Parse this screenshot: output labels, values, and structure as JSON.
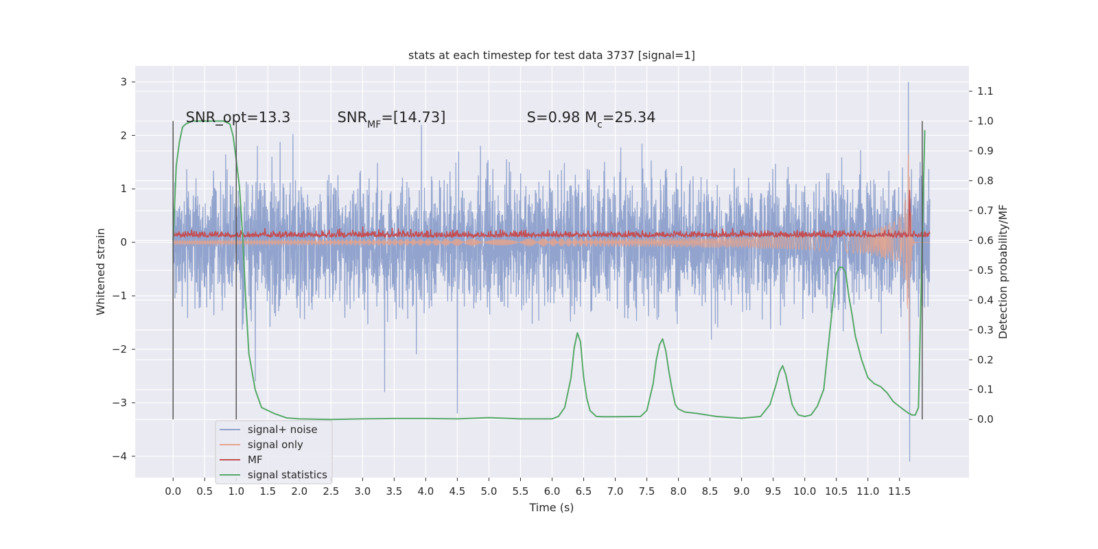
{
  "chart_data": {
    "type": "line",
    "title": "stats at each timestep for test data 3737 [signal=1]",
    "xlabel": "Time (s)",
    "ylabel": "Whitened strain",
    "y2label": "Detection probability/MF",
    "xlim": [
      -0.6,
      12.6
    ],
    "ylim": [
      -4.4,
      3.3
    ],
    "y2lim": [
      -0.195,
      1.185
    ],
    "x_ticks": [
      0.0,
      0.5,
      1.0,
      1.5,
      2.0,
      2.5,
      3.0,
      3.5,
      4.0,
      4.5,
      5.0,
      5.5,
      6.0,
      6.5,
      7.0,
      7.5,
      8.0,
      8.5,
      9.0,
      9.5,
      10.0,
      10.5,
      11.0,
      11.5
    ],
    "x_tick_labels": [
      "0.0",
      "0.5",
      "1.0",
      "1.5",
      "2.0",
      "2.5",
      "3.0",
      "3.5",
      "4.0",
      "4.5",
      "5.0",
      "5.5",
      "6.0",
      "6.5",
      "7.0",
      "7.5",
      "8.0",
      "8.5",
      "9.0",
      "9.5",
      "10.0",
      "10.5",
      "11.0",
      "11.5"
    ],
    "y_ticks": [
      3,
      2,
      1,
      0,
      -1,
      -2,
      -3,
      -4
    ],
    "y_tick_labels": [
      "3",
      "2",
      "1",
      "0",
      "−1",
      "−2",
      "−3",
      "−4"
    ],
    "y2_ticks": [
      1.1,
      1.0,
      0.9,
      0.8,
      0.7,
      0.6,
      0.5,
      0.4,
      0.3,
      0.2,
      0.1,
      0.0
    ],
    "y2_tick_labels": [
      "1.1",
      "1.0",
      "0.9",
      "0.8",
      "0.7",
      "0.6",
      "0.5",
      "0.4",
      "0.3",
      "0.2",
      "0.1",
      "0.0"
    ],
    "grid": true,
    "legend_position": "lower-left",
    "annotations": [
      {
        "text": "SNR_opt=13.3",
        "x": 0.2,
        "y": 2.25
      },
      {
        "text": "SNR_MF=[14.73]",
        "x": 2.6,
        "y": 2.25
      },
      {
        "text": "S=0.98   M_c=25.34",
        "x": 5.6,
        "y": 2.25
      }
    ],
    "vertical_lines": [
      {
        "x": 0.0,
        "y2_from": 0.0,
        "y2_to": 1.0
      },
      {
        "x": 1.0,
        "y2_from": 0.0,
        "y2_to": 1.0
      },
      {
        "x": 11.86,
        "y2_from": 0.0,
        "y2_to": 1.0
      }
    ],
    "series": [
      {
        "name": "signal+ noise",
        "axis": "left",
        "color": "#8da0cb",
        "x_range": [
          0.0,
          11.98
        ],
        "amplitude_std": 0.6,
        "extremes": [
          {
            "x": 11.64,
            "y": 3.0
          },
          {
            "x": 11.66,
            "y": -4.1
          },
          {
            "x": 4.5,
            "y": -3.2
          },
          {
            "x": 3.35,
            "y": -2.8
          },
          {
            "x": 1.3,
            "y": -2.6
          }
        ]
      },
      {
        "name": "signal only",
        "axis": "left",
        "color": "#e5a38c",
        "x_range": [
          0.0,
          11.98
        ],
        "chirp_start_amplitude": 0.05,
        "chirp_peak": {
          "x": 11.66,
          "y": 2.2,
          "y_min": -2.1
        }
      },
      {
        "name": "MF",
        "axis": "left",
        "color": "#c44e52",
        "x_range": [
          0.0,
          11.98
        ],
        "baseline": 0.1,
        "noise_amplitude": 0.06,
        "peak": {
          "x": 11.66,
          "y": 1.0
        }
      },
      {
        "name": "signal statistics",
        "axis": "right",
        "color": "#55a868",
        "x": [
          0.0,
          0.05,
          0.1,
          0.15,
          0.2,
          0.3,
          0.5,
          0.7,
          0.8,
          0.9,
          0.95,
          1.0,
          1.05,
          1.1,
          1.15,
          1.2,
          1.3,
          1.4,
          1.6,
          1.8,
          2.0,
          2.5,
          3.0,
          3.5,
          4.0,
          4.5,
          5.0,
          5.5,
          6.0,
          6.1,
          6.2,
          6.3,
          6.35,
          6.4,
          6.45,
          6.5,
          6.55,
          6.6,
          6.7,
          6.8,
          7.0,
          7.4,
          7.5,
          7.6,
          7.65,
          7.7,
          7.75,
          7.8,
          7.85,
          7.9,
          7.95,
          8.0,
          8.1,
          8.3,
          8.6,
          9.0,
          9.3,
          9.45,
          9.55,
          9.6,
          9.65,
          9.7,
          9.75,
          9.8,
          9.85,
          9.9,
          10.0,
          10.1,
          10.2,
          10.3,
          10.4,
          10.45,
          10.5,
          10.55,
          10.6,
          10.65,
          10.7,
          10.75,
          10.8,
          10.9,
          11.0,
          11.1,
          11.2,
          11.3,
          11.4,
          11.55,
          11.65,
          11.7,
          11.75,
          11.8,
          11.85,
          11.9
        ],
        "values": [
          0.6,
          0.85,
          0.93,
          0.98,
          0.99,
          1.0,
          1.0,
          1.0,
          1.0,
          0.99,
          0.95,
          0.87,
          0.78,
          0.62,
          0.4,
          0.22,
          0.1,
          0.04,
          0.02,
          0.005,
          0.002,
          0.0,
          0.002,
          0.003,
          0.003,
          0.002,
          0.006,
          0.002,
          0.002,
          0.01,
          0.04,
          0.14,
          0.24,
          0.29,
          0.26,
          0.14,
          0.07,
          0.03,
          0.01,
          0.009,
          0.009,
          0.01,
          0.03,
          0.12,
          0.2,
          0.25,
          0.27,
          0.23,
          0.16,
          0.1,
          0.05,
          0.035,
          0.025,
          0.02,
          0.01,
          0.004,
          0.01,
          0.05,
          0.12,
          0.16,
          0.18,
          0.15,
          0.1,
          0.05,
          0.03,
          0.015,
          0.01,
          0.015,
          0.045,
          0.1,
          0.3,
          0.4,
          0.49,
          0.51,
          0.51,
          0.49,
          0.41,
          0.35,
          0.28,
          0.2,
          0.14,
          0.12,
          0.11,
          0.09,
          0.06,
          0.035,
          0.02,
          0.015,
          0.015,
          0.04,
          0.5,
          0.97
        ]
      }
    ]
  }
}
